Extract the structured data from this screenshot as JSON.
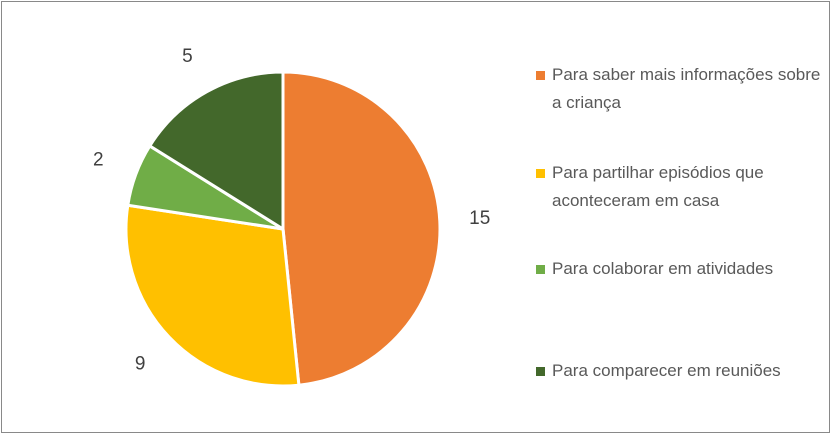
{
  "chart_data": {
    "type": "pie",
    "categories": [
      "Para saber mais informações sobre a criança",
      "Para partilhar episódios que aconteceram em casa",
      "Para colaborar em atividades",
      "Para comparecer em reuniões"
    ],
    "values": [
      15,
      9,
      2,
      5
    ],
    "colors": [
      "#ed7d31",
      "#ffc000",
      "#70ad47",
      "#43682b"
    ],
    "legend": "right"
  }
}
